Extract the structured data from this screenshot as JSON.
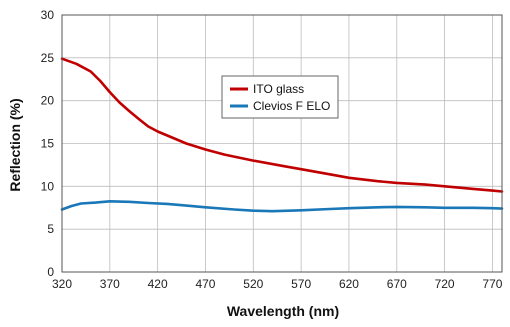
{
  "chart_data": {
    "type": "line",
    "title": "",
    "xlabel": "Wavelength (nm)",
    "ylabel": "Reflection (%)",
    "xlim": [
      320,
      780
    ],
    "ylim": [
      0,
      30
    ],
    "xticks": [
      320,
      370,
      420,
      470,
      520,
      570,
      620,
      670,
      720,
      770
    ],
    "yticks": [
      0,
      5,
      10,
      15,
      20,
      25,
      30
    ],
    "grid": true,
    "legend_position": "upper-center",
    "series": [
      {
        "name": "ITO glass",
        "color": "#c00000",
        "points": [
          [
            320,
            24.9
          ],
          [
            335,
            24.3
          ],
          [
            350,
            23.4
          ],
          [
            360,
            22.3
          ],
          [
            370,
            21.0
          ],
          [
            380,
            19.8
          ],
          [
            390,
            18.8
          ],
          [
            400,
            17.9
          ],
          [
            410,
            17.0
          ],
          [
            420,
            16.4
          ],
          [
            435,
            15.7
          ],
          [
            450,
            15.0
          ],
          [
            470,
            14.3
          ],
          [
            490,
            13.7
          ],
          [
            520,
            13.0
          ],
          [
            550,
            12.4
          ],
          [
            570,
            12.0
          ],
          [
            600,
            11.4
          ],
          [
            620,
            11.0
          ],
          [
            650,
            10.6
          ],
          [
            670,
            10.4
          ],
          [
            700,
            10.2
          ],
          [
            720,
            10.0
          ],
          [
            750,
            9.7
          ],
          [
            770,
            9.5
          ],
          [
            780,
            9.4
          ]
        ]
      },
      {
        "name": "Clevios F ELO",
        "color": "#1a78b8",
        "points": [
          [
            320,
            7.3
          ],
          [
            330,
            7.7
          ],
          [
            340,
            8.0
          ],
          [
            355,
            8.1
          ],
          [
            370,
            8.25
          ],
          [
            390,
            8.2
          ],
          [
            410,
            8.05
          ],
          [
            430,
            7.95
          ],
          [
            450,
            7.75
          ],
          [
            470,
            7.55
          ],
          [
            500,
            7.3
          ],
          [
            520,
            7.15
          ],
          [
            540,
            7.1
          ],
          [
            570,
            7.2
          ],
          [
            600,
            7.35
          ],
          [
            620,
            7.45
          ],
          [
            650,
            7.55
          ],
          [
            670,
            7.6
          ],
          [
            700,
            7.55
          ],
          [
            720,
            7.5
          ],
          [
            750,
            7.5
          ],
          [
            770,
            7.45
          ],
          [
            780,
            7.4
          ]
        ]
      }
    ]
  }
}
